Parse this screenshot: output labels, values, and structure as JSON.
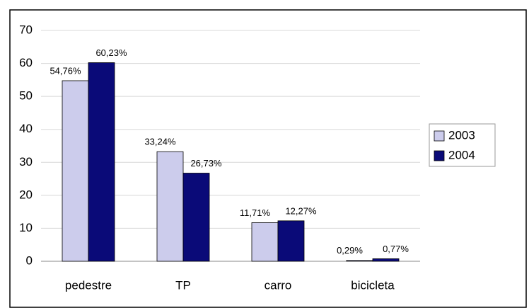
{
  "chart_data": {
    "type": "bar",
    "categories": [
      "pedestre",
      "TP",
      "carro",
      "bicicleta"
    ],
    "series": [
      {
        "name": "2003",
        "color": "#ccccec",
        "values": [
          54.76,
          33.24,
          11.71,
          0.29
        ],
        "value_labels": [
          "54,76%",
          "33,24%",
          "11,71%",
          "0,29%"
        ]
      },
      {
        "name": "2004",
        "color": "#0a0a78",
        "values": [
          60.23,
          26.73,
          12.27,
          0.77
        ],
        "value_labels": [
          "60,23%",
          "26,73%",
          "12,27%",
          "0,77%"
        ]
      }
    ],
    "ylim": [
      0,
      70
    ],
    "yticks": [
      0,
      10,
      20,
      30,
      40,
      50,
      60,
      70
    ],
    "grid": true,
    "legend": "right"
  }
}
